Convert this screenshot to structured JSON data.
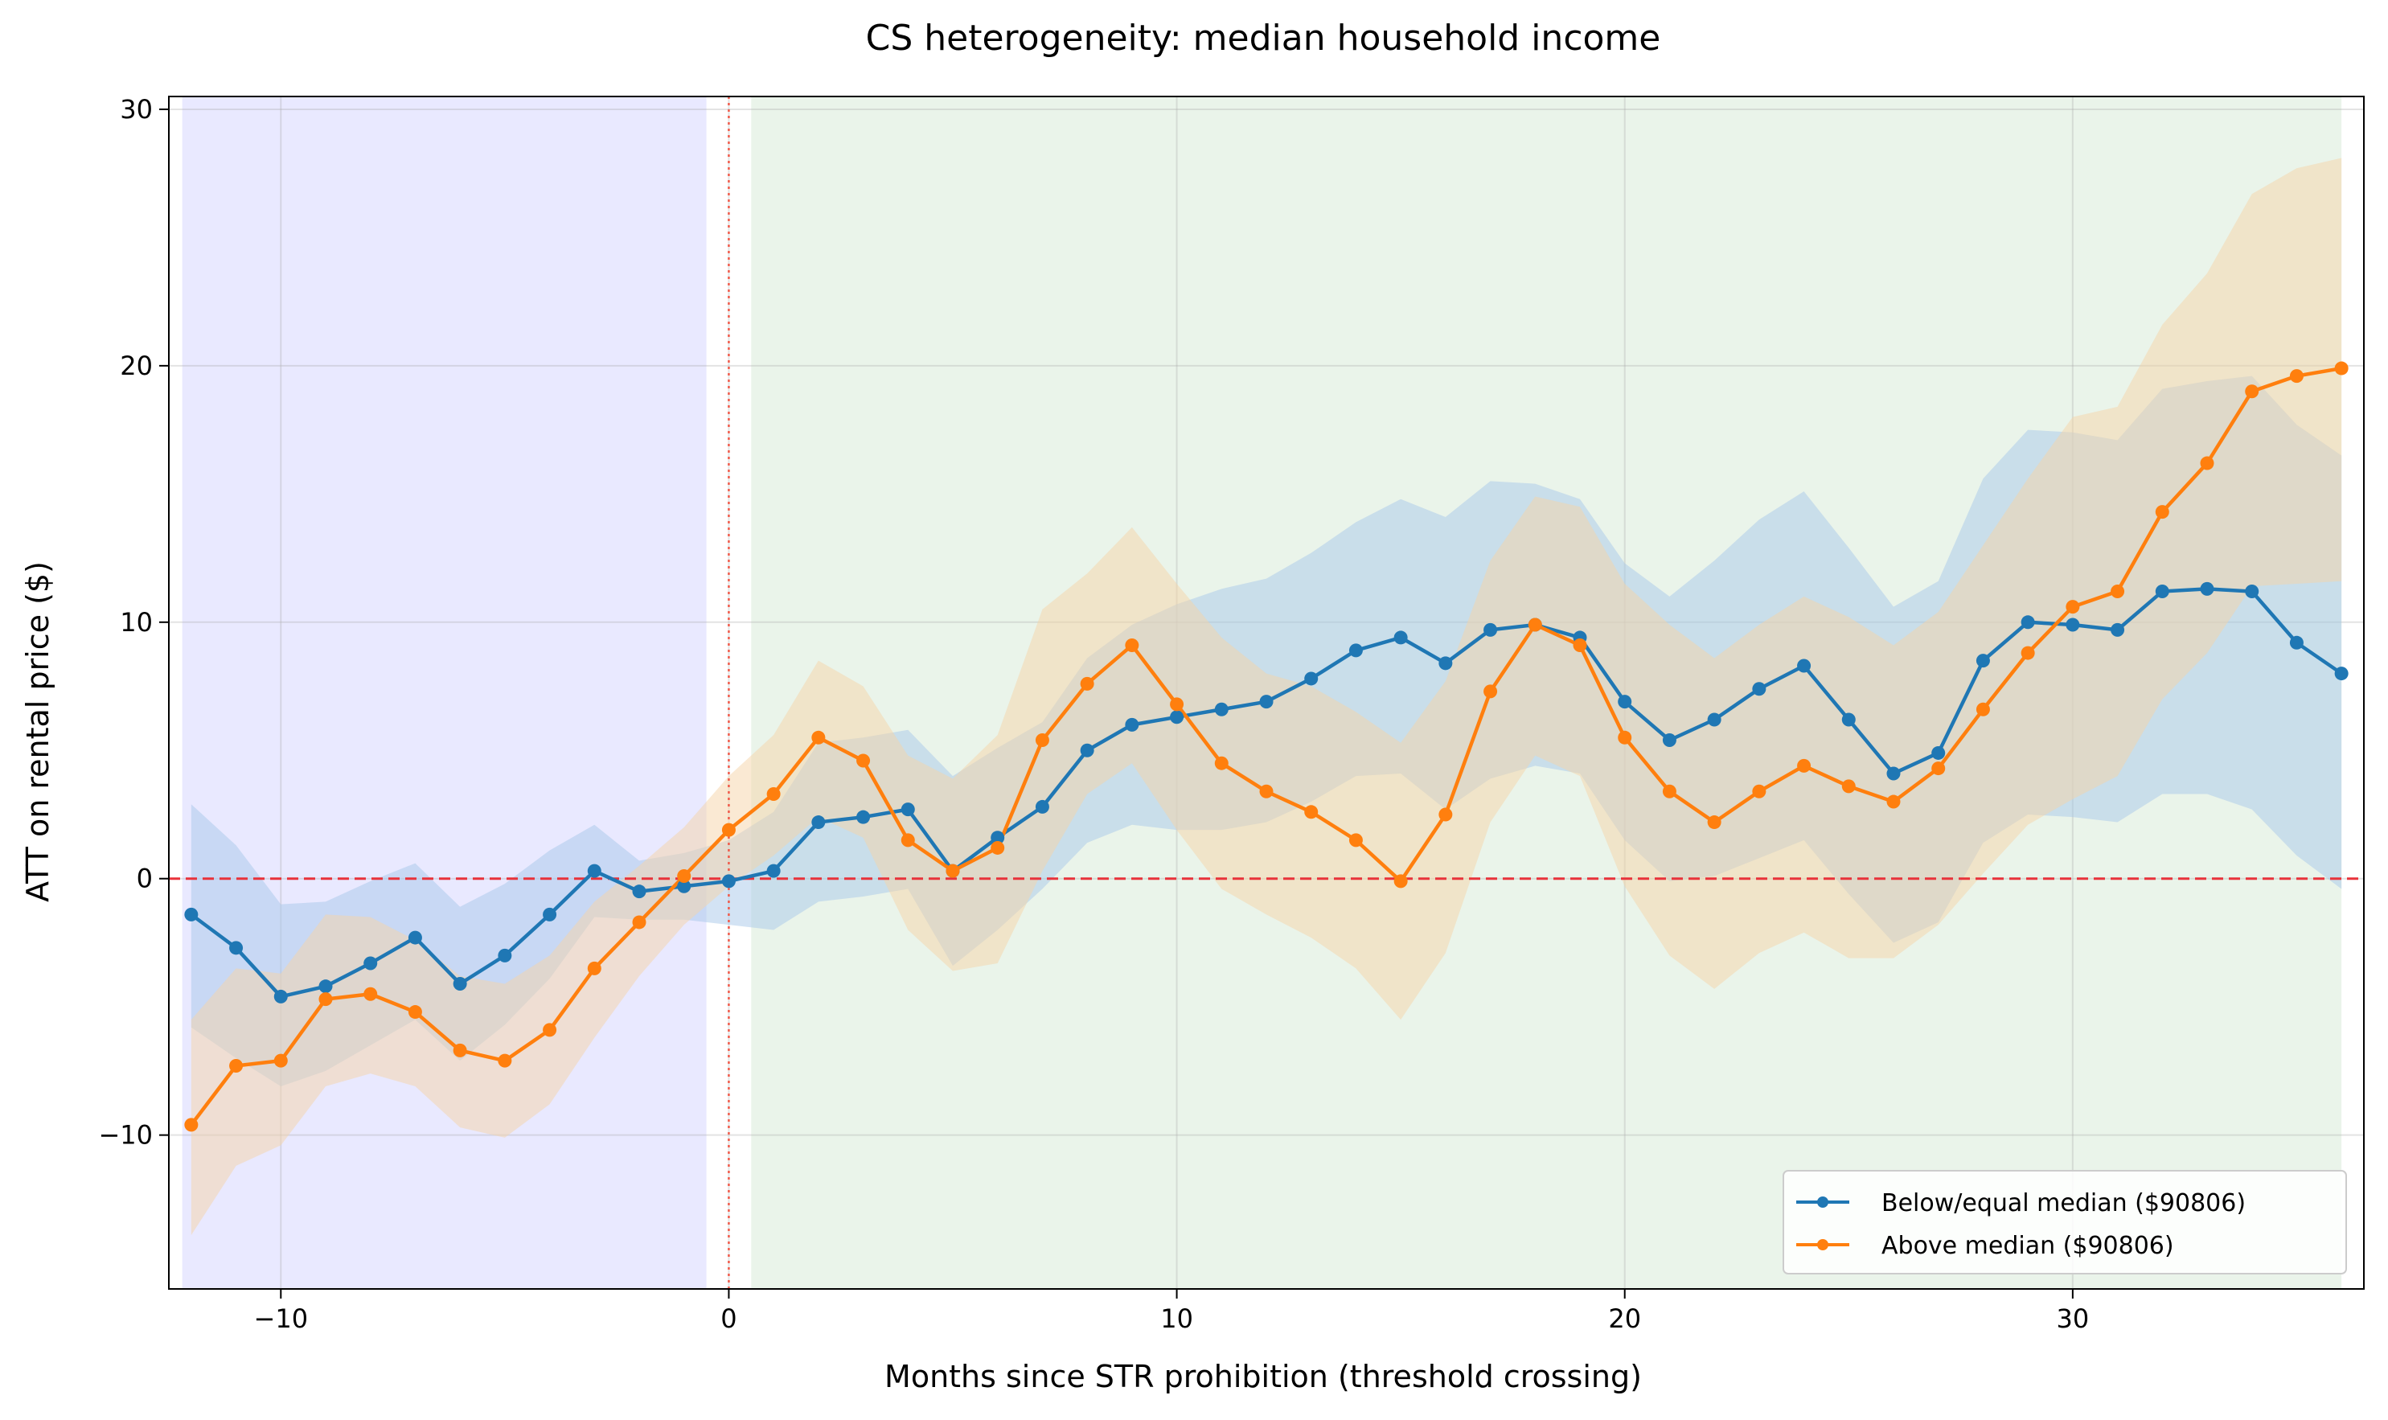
{
  "chart_data": {
    "type": "line",
    "title": "CS heterogeneity: median household income",
    "xlabel": "Months since STR prohibition (threshold crossing)",
    "ylabel": "ATT on rental price ($)",
    "xlim": [
      -12.5,
      36.5
    ],
    "ylim": [
      -16,
      30.5
    ],
    "xticks": [
      -10,
      0,
      10,
      20,
      30
    ],
    "yticks": [
      -10,
      0,
      10,
      20,
      30
    ],
    "grid": true,
    "legend_position": "lower-right",
    "shaded_regions": [
      {
        "x_start": -12.2,
        "x_end": -0.5,
        "color": "#e9e9ff"
      },
      {
        "x_start": 0.5,
        "x_end": 36.0,
        "color": "#eaf4ea"
      }
    ],
    "reference_lines": {
      "horizontal_y": 0,
      "horizontal_color": "#e8323a",
      "vertical_x": 0,
      "vertical_color": "#f05a4a"
    },
    "series": [
      {
        "name": "Below/equal median ($90806)",
        "color": "#1f77b4",
        "band_color": "#a8c8ea",
        "x": [
          -12,
          -11,
          -10,
          -9,
          -8,
          -7,
          -6,
          -5,
          -4,
          -3,
          -2,
          -1,
          0,
          1,
          2,
          3,
          4,
          5,
          6,
          7,
          8,
          9,
          10,
          11,
          12,
          13,
          14,
          15,
          16,
          17,
          18,
          19,
          20,
          21,
          22,
          23,
          24,
          25,
          26,
          27,
          28,
          29,
          30,
          31,
          32,
          33,
          34,
          35,
          36
        ],
        "values": [
          -1.4,
          -2.7,
          -4.6,
          -4.2,
          -3.3,
          -2.3,
          -4.1,
          -3.0,
          -1.4,
          0.3,
          -0.5,
          -0.3,
          -0.1,
          0.3,
          2.2,
          2.4,
          2.7,
          0.3,
          1.6,
          2.8,
          5.0,
          6.0,
          6.3,
          6.6,
          6.9,
          7.8,
          8.9,
          9.4,
          8.4,
          9.7,
          9.9,
          9.4,
          6.9,
          5.4,
          6.2,
          7.4,
          8.3,
          6.2,
          4.1,
          4.9,
          8.5,
          10.0,
          9.9,
          9.7,
          11.2,
          11.3,
          11.2,
          9.2,
          8.0
        ],
        "lower": [
          -5.8,
          -7.0,
          -8.1,
          -7.5,
          -6.5,
          -5.5,
          -7.1,
          -5.7,
          -3.9,
          -1.5,
          -1.6,
          -1.6,
          -1.8,
          -2.0,
          -0.9,
          -0.7,
          -0.4,
          -3.4,
          -2.0,
          -0.4,
          1.4,
          2.1,
          1.9,
          1.9,
          2.2,
          3.0,
          4.0,
          4.1,
          2.7,
          3.9,
          4.4,
          4.1,
          1.5,
          -0.1,
          0.1,
          0.8,
          1.5,
          -0.6,
          -2.5,
          -1.7,
          1.4,
          2.5,
          2.4,
          2.2,
          3.3,
          3.3,
          2.7,
          0.9,
          -0.4
        ],
        "upper": [
          2.9,
          1.3,
          -1.0,
          -0.9,
          -0.1,
          0.6,
          -1.1,
          -0.2,
          1.1,
          2.1,
          0.7,
          1.0,
          1.5,
          2.6,
          5.3,
          5.5,
          5.8,
          4.0,
          5.1,
          6.1,
          8.6,
          9.9,
          10.7,
          11.3,
          11.7,
          12.7,
          13.9,
          14.8,
          14.1,
          15.5,
          15.4,
          14.8,
          12.3,
          11.0,
          12.4,
          14.0,
          15.1,
          12.9,
          10.6,
          11.6,
          15.6,
          17.5,
          17.4,
          17.1,
          19.1,
          19.4,
          19.6,
          17.7,
          16.5
        ]
      },
      {
        "name": "Above median ($90806)",
        "color": "#ff7f0e",
        "band_color": "#f5d3a8",
        "x": [
          -12,
          -11,
          -10,
          -9,
          -8,
          -7,
          -6,
          -5,
          -4,
          -3,
          -2,
          -1,
          0,
          1,
          2,
          3,
          4,
          5,
          6,
          7,
          8,
          9,
          10,
          11,
          12,
          13,
          14,
          15,
          16,
          17,
          18,
          19,
          20,
          21,
          22,
          23,
          24,
          25,
          26,
          27,
          28,
          29,
          30,
          31,
          32,
          33,
          34,
          35,
          36
        ],
        "values": [
          -9.6,
          -7.3,
          -7.1,
          -4.7,
          -4.5,
          -5.2,
          -6.7,
          -7.1,
          -5.9,
          -3.5,
          -1.7,
          0.1,
          1.9,
          3.3,
          5.5,
          4.6,
          1.5,
          0.3,
          1.2,
          5.4,
          7.6,
          9.1,
          6.8,
          4.5,
          3.4,
          2.6,
          1.5,
          -0.1,
          2.5,
          7.3,
          9.9,
          9.1,
          5.5,
          3.4,
          2.2,
          3.4,
          4.4,
          3.6,
          3.0,
          4.3,
          6.6,
          8.8,
          10.6,
          11.2,
          14.3,
          16.2,
          19.0,
          19.6,
          19.9
        ],
        "lower": [
          -13.9,
          -11.2,
          -10.4,
          -8.1,
          -7.6,
          -8.1,
          -9.7,
          -10.1,
          -8.8,
          -6.2,
          -3.8,
          -1.8,
          -0.3,
          0.9,
          2.4,
          1.6,
          -2.0,
          -3.6,
          -3.3,
          0.3,
          3.3,
          4.5,
          1.9,
          -0.4,
          -1.4,
          -2.3,
          -3.5,
          -5.5,
          -2.9,
          2.2,
          4.8,
          4.0,
          -0.3,
          -3.0,
          -4.3,
          -2.9,
          -2.1,
          -3.1,
          -3.1,
          -1.8,
          0.2,
          2.1,
          3.1,
          4.0,
          7.0,
          8.8,
          11.4,
          11.5,
          11.6
        ],
        "upper": [
          -5.5,
          -3.5,
          -3.7,
          -1.4,
          -1.5,
          -2.4,
          -3.8,
          -4.1,
          -3.0,
          -0.9,
          0.5,
          2.0,
          4.0,
          5.6,
          8.5,
          7.5,
          4.8,
          3.9,
          5.6,
          10.5,
          11.9,
          13.7,
          11.5,
          9.4,
          8.0,
          7.5,
          6.5,
          5.3,
          7.7,
          12.4,
          14.9,
          14.5,
          11.5,
          9.9,
          8.6,
          9.9,
          11.0,
          10.2,
          9.1,
          10.4,
          13.0,
          15.6,
          18.0,
          18.4,
          21.6,
          23.6,
          26.7,
          27.7,
          28.1
        ]
      }
    ]
  }
}
